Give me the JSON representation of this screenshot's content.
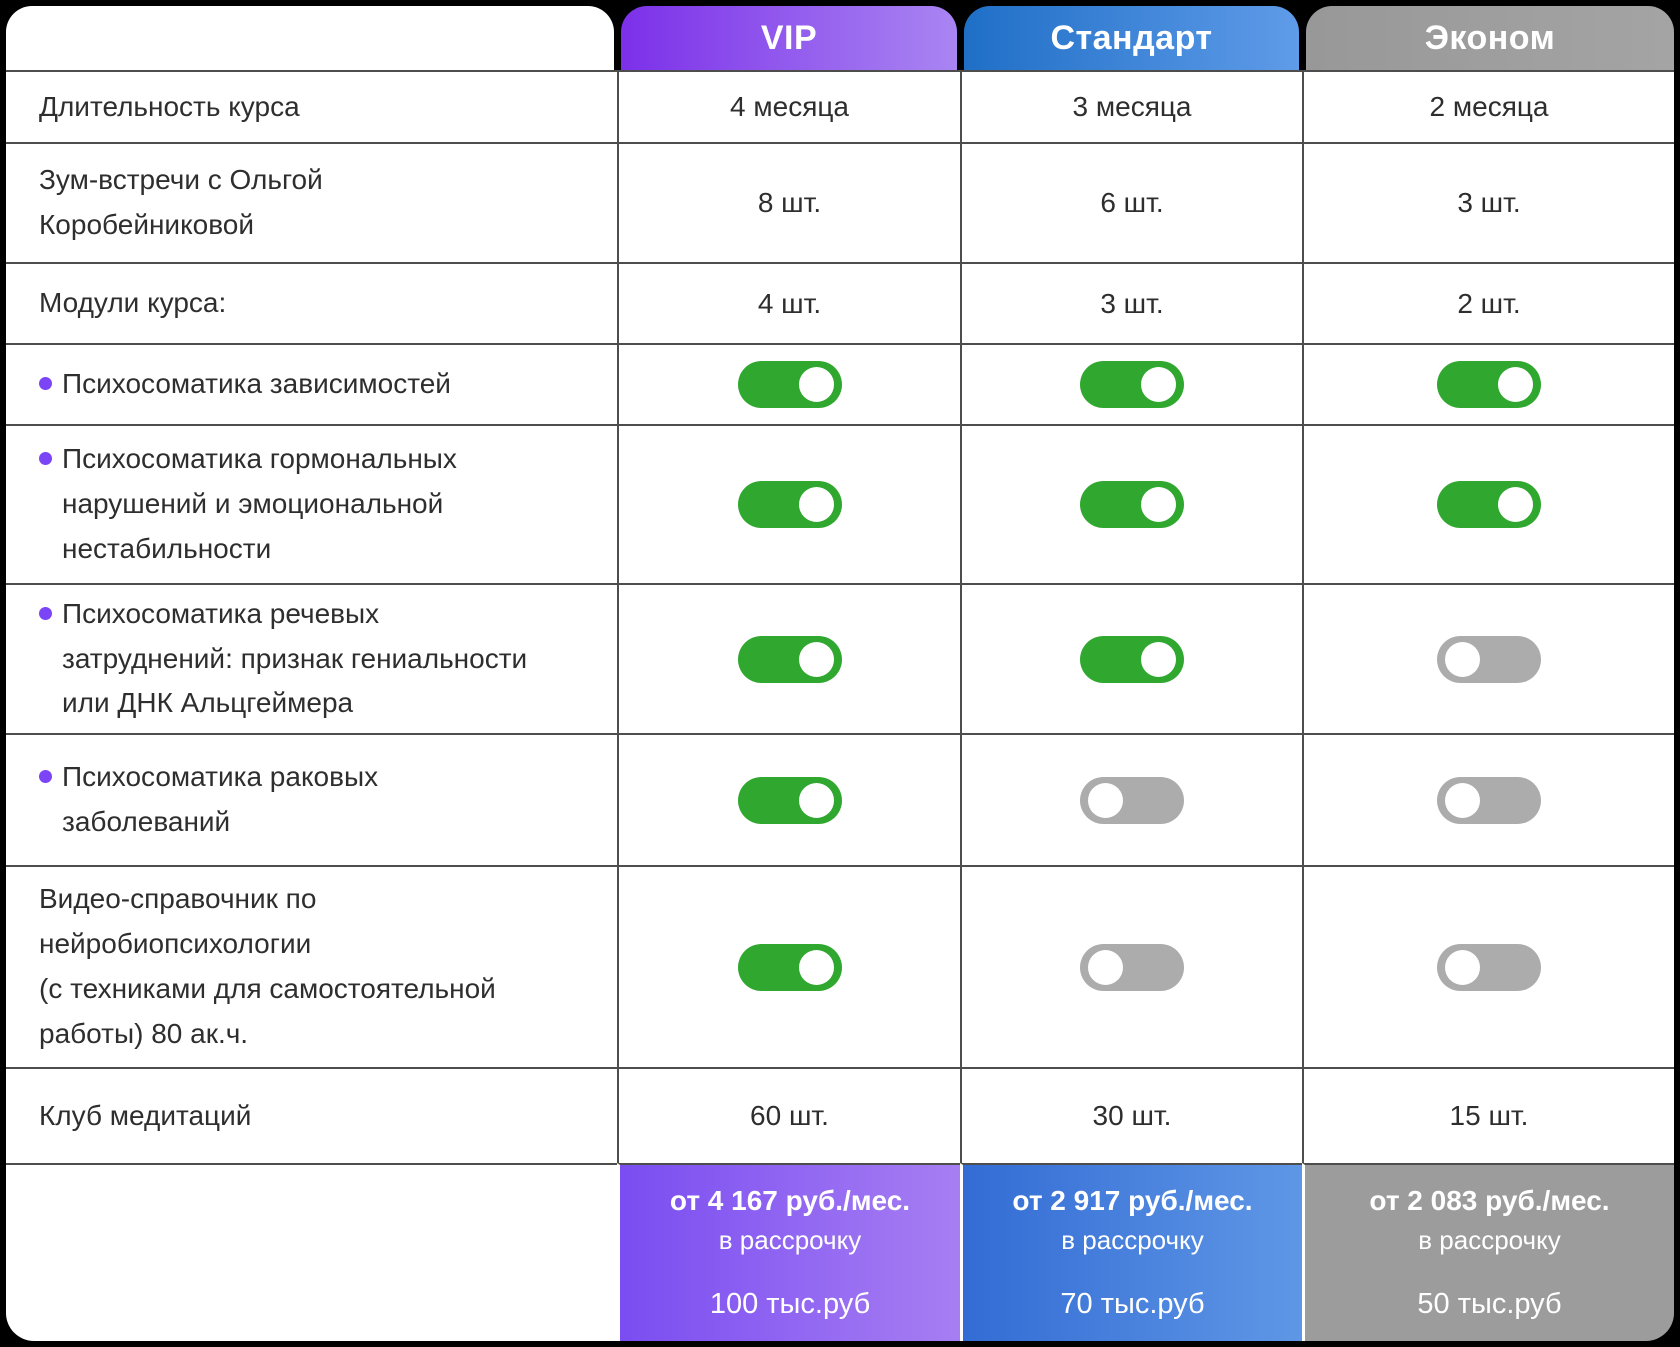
{
  "theme": {
    "background": "#000000",
    "table_background": "#FFFFFF",
    "border_color": "#4D4D4D",
    "text_color": "#2E2E2E",
    "bullet_color": "#7B45F5",
    "toggle_on_color": "#30A830",
    "toggle_off_color": "#ACACAC",
    "toggle_knob_color": "#FFFFFF"
  },
  "plans": [
    {
      "name": "VIP",
      "header_colors": [
        "#7C30E9",
        "#A985F2"
      ],
      "footer_colors": [
        "#7A4DF1",
        "#A77EF2"
      ],
      "price_monthly": "от 4 167 руб./мес.",
      "installment_label": "в рассрочку",
      "price_total": "100 тыс.руб"
    },
    {
      "name": "Стандарт",
      "header_colors": [
        "#1F6FC7",
        "#5F9BE8"
      ],
      "footer_colors": [
        "#336CD4",
        "#5F97E6"
      ],
      "price_monthly": "от 2 917 руб./мес.",
      "installment_label": "в рассрочку",
      "price_total": "70 тыс.руб"
    },
    {
      "name": "Эконом",
      "header_colors": [
        "#989898",
        "#A4A4A4"
      ],
      "footer_colors": [
        "#9C9C9C",
        "#9C9C9C"
      ],
      "price_monthly": "от 2 083 руб./мес.",
      "installment_label": "в рассрочку",
      "price_total": "50 тыс.руб"
    }
  ],
  "rows": [
    {
      "label": "Длительность курса",
      "bullet": false,
      "type": "text",
      "values": [
        "4 месяца",
        "3 месяца",
        "2 месяца"
      ]
    },
    {
      "label": "Зум-встречи с Ольгой\nКоробейниковой",
      "bullet": false,
      "type": "text",
      "values": [
        "8 шт.",
        "6 шт.",
        "3 шт."
      ]
    },
    {
      "label": "Модули курса:",
      "bullet": false,
      "type": "text",
      "values": [
        "4 шт.",
        "3 шт.",
        "2 шт."
      ]
    },
    {
      "label": "Психосоматика зависимостей",
      "bullet": true,
      "type": "toggle",
      "toggles": [
        true,
        true,
        true
      ]
    },
    {
      "label": "Психосоматика гормональных\nнарушений и эмоциональной\nнестабильности",
      "bullet": true,
      "type": "toggle",
      "toggles": [
        true,
        true,
        true
      ]
    },
    {
      "label": "Психосоматика речевых\nзатруднений: признак гениальности\nили ДНК Альцгеймера",
      "bullet": true,
      "type": "toggle",
      "toggles": [
        true,
        true,
        false
      ]
    },
    {
      "label": "Психосоматика раковых\nзаболеваний",
      "bullet": true,
      "type": "toggle",
      "toggles": [
        true,
        false,
        false
      ]
    },
    {
      "label": "Видео-справочник по\nнейробиопсихологии\n(с техниками для самостоятельной\nработы) 80 ак.ч.",
      "bullet": false,
      "type": "toggle",
      "toggles": [
        true,
        false,
        false
      ]
    },
    {
      "label": "Клуб медитаций",
      "bullet": false,
      "type": "text",
      "values": [
        "60 шт.",
        "30 шт.",
        "15 шт."
      ]
    }
  ]
}
